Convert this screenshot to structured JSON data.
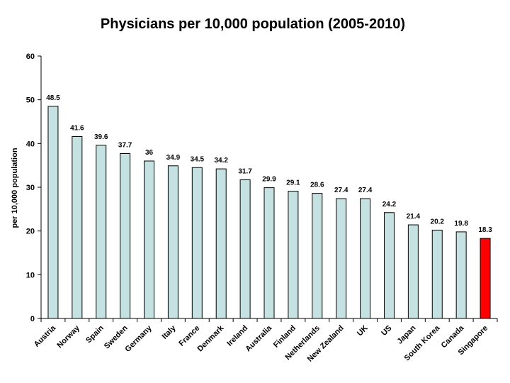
{
  "chart_data": {
    "type": "bar",
    "title": "Physicians per 10,000 population (2005-2010)",
    "xlabel": "",
    "ylabel": "per 10,000 population",
    "ylim": [
      0,
      60
    ],
    "yticks": [
      0,
      10,
      20,
      30,
      40,
      50,
      60
    ],
    "grid": false,
    "legend": "none",
    "bar_color": "#c5e1e1",
    "highlight_color": "#ff0000",
    "highlight_category": "Singapore",
    "categories": [
      "Austria",
      "Norway",
      "Spain",
      "Sweden",
      "Germany",
      "Italy",
      "France",
      "Denmark",
      "Ireland",
      "Australia",
      "Finland",
      "Netherlands",
      "New Zealand",
      "UK",
      "US",
      "Japan",
      "South Korea",
      "Canada",
      "Singapore"
    ],
    "values": [
      48.5,
      41.6,
      39.6,
      37.7,
      36,
      34.9,
      34.5,
      34.2,
      31.7,
      29.9,
      29.1,
      28.6,
      27.4,
      27.4,
      24.2,
      21.4,
      20.2,
      19.8,
      18.3
    ],
    "data_labels": [
      "48.5",
      "41.6",
      "39.6",
      "37.7",
      "36",
      "34.9",
      "34.5",
      "34.2",
      "31.7",
      "29.9",
      "29.1",
      "28.6",
      "27.4",
      "27.4",
      "24.2",
      "21.4",
      "20.2",
      "19.8",
      "18.3"
    ]
  }
}
